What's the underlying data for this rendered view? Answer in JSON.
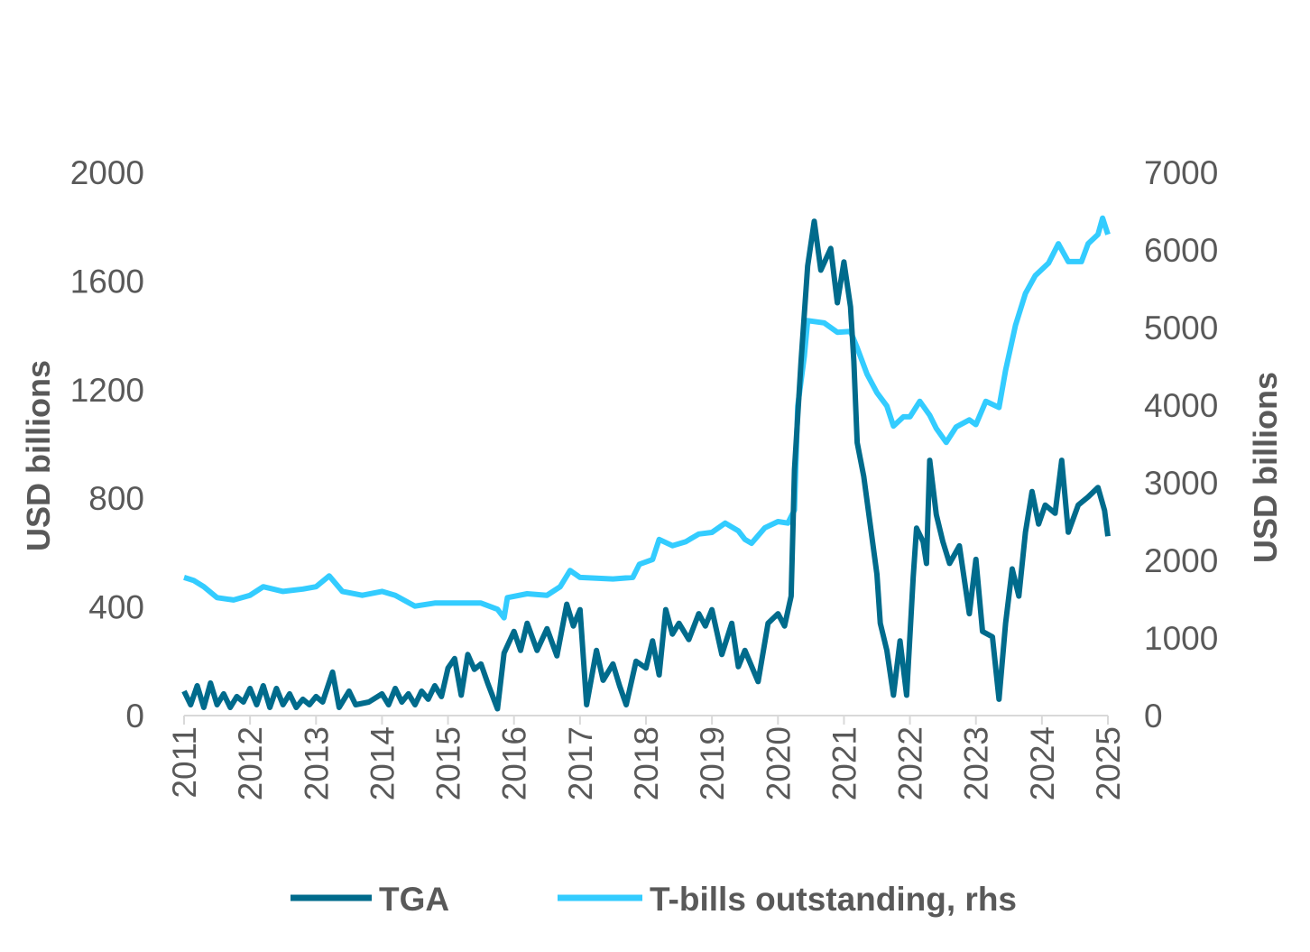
{
  "chart_data": {
    "type": "line",
    "title": "",
    "xlabel": "",
    "ylabel": "USD billions",
    "y2label": "USD billions",
    "xlim": [
      2011,
      2025
    ],
    "ylim": [
      0,
      2000
    ],
    "y2lim": [
      0,
      7000
    ],
    "x_ticks": [
      "2011",
      "2012",
      "2013",
      "2014",
      "2015",
      "2016",
      "2017",
      "2018",
      "2019",
      "2020",
      "2021",
      "2022",
      "2023",
      "2024",
      "2025"
    ],
    "y_ticks": [
      "0",
      "400",
      "800",
      "1200",
      "1600",
      "2000"
    ],
    "y2_ticks": [
      "0",
      "1000",
      "2000",
      "3000",
      "4000",
      "5000",
      "6000",
      "7000"
    ],
    "grid": false,
    "legend_position": "bottom",
    "series": [
      {
        "name": "TGA",
        "axis": "left",
        "color": "#006b8c",
        "x": [
          2011.0,
          2011.1,
          2011.2,
          2011.3,
          2011.4,
          2011.5,
          2011.6,
          2011.7,
          2011.8,
          2011.9,
          2012.0,
          2012.1,
          2012.2,
          2012.3,
          2012.4,
          2012.5,
          2012.6,
          2012.7,
          2012.8,
          2012.9,
          2013.0,
          2013.1,
          2013.25,
          2013.35,
          2013.5,
          2013.6,
          2013.8,
          2014.0,
          2014.1,
          2014.2,
          2014.3,
          2014.4,
          2014.5,
          2014.6,
          2014.7,
          2014.8,
          2014.9,
          2015.0,
          2015.1,
          2015.2,
          2015.3,
          2015.4,
          2015.5,
          2015.6,
          2015.75,
          2015.85,
          2016.0,
          2016.1,
          2016.2,
          2016.35,
          2016.5,
          2016.65,
          2016.8,
          2016.9,
          2017.0,
          2017.1,
          2017.25,
          2017.35,
          2017.5,
          2017.6,
          2017.7,
          2017.85,
          2018.0,
          2018.1,
          2018.2,
          2018.3,
          2018.4,
          2018.5,
          2018.65,
          2018.8,
          2018.9,
          2019.0,
          2019.15,
          2019.3,
          2019.4,
          2019.5,
          2019.7,
          2019.85,
          2020.0,
          2020.1,
          2020.2,
          2020.25,
          2020.35,
          2020.45,
          2020.55,
          2020.65,
          2020.8,
          2020.9,
          2021.0,
          2021.1,
          2021.15,
          2021.2,
          2021.3,
          2021.4,
          2021.5,
          2021.55,
          2021.65,
          2021.75,
          2021.85,
          2021.95,
          2022.05,
          2022.1,
          2022.2,
          2022.25,
          2022.3,
          2022.4,
          2022.5,
          2022.6,
          2022.75,
          2022.9,
          2023.0,
          2023.1,
          2023.25,
          2023.35,
          2023.45,
          2023.55,
          2023.65,
          2023.75,
          2023.85,
          2023.95,
          2024.05,
          2024.2,
          2024.3,
          2024.4,
          2024.55,
          2024.7,
          2024.85,
          2024.95,
          2025.0
        ],
        "values": [
          90,
          40,
          110,
          30,
          120,
          40,
          80,
          30,
          70,
          50,
          100,
          40,
          110,
          30,
          100,
          40,
          80,
          30,
          60,
          40,
          70,
          50,
          160,
          30,
          90,
          40,
          50,
          80,
          40,
          100,
          50,
          80,
          40,
          90,
          60,
          110,
          70,
          175,
          210,
          75,
          225,
          170,
          190,
          120,
          25,
          230,
          310,
          240,
          340,
          240,
          320,
          220,
          410,
          330,
          390,
          40,
          240,
          130,
          190,
          110,
          40,
          200,
          175,
          275,
          150,
          390,
          300,
          340,
          280,
          375,
          330,
          390,
          225,
          340,
          180,
          240,
          125,
          340,
          375,
          330,
          440,
          905,
          1305,
          1655,
          1820,
          1640,
          1720,
          1520,
          1670,
          1505,
          1305,
          1005,
          880,
          700,
          520,
          340,
          240,
          75,
          275,
          75,
          510,
          690,
          640,
          560,
          940,
          740,
          640,
          560,
          625,
          375,
          575,
          310,
          290,
          60,
          340,
          540,
          440,
          675,
          825,
          705,
          775,
          745,
          940,
          675,
          775,
          805,
          840,
          755,
          660
        ]
      },
      {
        "name": "T-bills outstanding, rhs",
        "axis": "right",
        "color": "#33ccff",
        "x": [
          2011.0,
          2011.15,
          2011.3,
          2011.5,
          2011.75,
          2012.0,
          2012.2,
          2012.5,
          2012.8,
          2013.0,
          2013.2,
          2013.4,
          2013.7,
          2014.0,
          2014.2,
          2014.5,
          2014.8,
          2015.0,
          2015.5,
          2015.75,
          2015.85,
          2015.9,
          2016.2,
          2016.5,
          2016.7,
          2016.85,
          2017.0,
          2017.5,
          2017.8,
          2017.9,
          2018.1,
          2018.2,
          2018.4,
          2018.6,
          2018.8,
          2019.0,
          2019.2,
          2019.4,
          2019.5,
          2019.6,
          2019.8,
          2020.0,
          2020.15,
          2020.25,
          2020.3,
          2020.4,
          2020.45,
          2020.7,
          2020.9,
          2021.1,
          2021.2,
          2021.35,
          2021.5,
          2021.65,
          2021.75,
          2021.9,
          2022.0,
          2022.15,
          2022.3,
          2022.4,
          2022.55,
          2022.7,
          2022.9,
          2023.0,
          2023.15,
          2023.35,
          2023.45,
          2023.6,
          2023.75,
          2023.9,
          2024.1,
          2024.25,
          2024.4,
          2024.6,
          2024.7,
          2024.85,
          2024.92,
          2025.0
        ],
        "values": [
          1780,
          1740,
          1660,
          1520,
          1490,
          1550,
          1660,
          1600,
          1630,
          1660,
          1800,
          1600,
          1550,
          1600,
          1550,
          1410,
          1450,
          1450,
          1450,
          1370,
          1260,
          1520,
          1570,
          1550,
          1660,
          1870,
          1780,
          1760,
          1780,
          1950,
          2010,
          2270,
          2190,
          2240,
          2340,
          2360,
          2480,
          2380,
          2270,
          2220,
          2420,
          2500,
          2480,
          2650,
          3990,
          4630,
          5090,
          5060,
          4940,
          4950,
          4740,
          4400,
          4160,
          3990,
          3730,
          3850,
          3850,
          4050,
          3870,
          3700,
          3520,
          3720,
          3810,
          3750,
          4050,
          3970,
          4450,
          5030,
          5440,
          5670,
          5830,
          6080,
          5850,
          5850,
          6080,
          6200,
          6410,
          6200
        ]
      }
    ]
  }
}
